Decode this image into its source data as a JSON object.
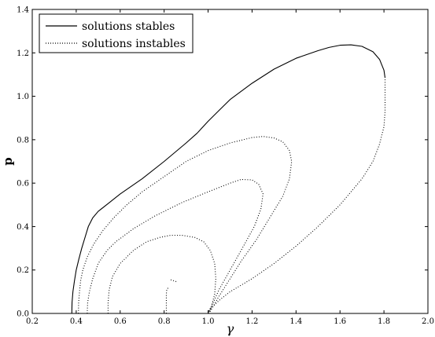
{
  "chart_data": {
    "type": "line",
    "title": "",
    "xlabel": "γ",
    "ylabel": "p",
    "xlim": [
      0.2,
      2.0
    ],
    "ylim": [
      0.0,
      1.4
    ],
    "xticks": [
      "0.2",
      "0.4",
      "0.6",
      "0.8",
      "1.0",
      "1.2",
      "1.4",
      "1.6",
      "1.8",
      "2.0"
    ],
    "yticks": [
      "0.0",
      "0.2",
      "0.4",
      "0.6",
      "0.8",
      "1.0",
      "1.2",
      "1.4"
    ],
    "grid": false,
    "legend_position": "top-left",
    "legend": [
      {
        "label": "solutions stables",
        "style": "solid"
      },
      {
        "label": "solutions instables",
        "style": "dotted"
      }
    ],
    "series": [
      {
        "style": "solid",
        "color": "#000000",
        "points": [
          [
            0.38,
            0.0
          ],
          [
            0.381,
            0.05
          ],
          [
            0.385,
            0.1
          ],
          [
            0.392,
            0.15
          ],
          [
            0.4,
            0.2
          ],
          [
            0.412,
            0.25
          ],
          [
            0.425,
            0.3
          ],
          [
            0.44,
            0.35
          ],
          [
            0.455,
            0.4
          ],
          [
            0.475,
            0.44
          ],
          [
            0.5,
            0.47
          ],
          [
            0.55,
            0.51
          ],
          [
            0.6,
            0.55
          ],
          [
            0.7,
            0.62
          ],
          [
            0.8,
            0.7
          ],
          [
            0.9,
            0.785
          ],
          [
            0.95,
            0.83
          ],
          [
            1.0,
            0.885
          ],
          [
            1.05,
            0.935
          ],
          [
            1.1,
            0.985
          ],
          [
            1.2,
            1.06
          ],
          [
            1.3,
            1.125
          ],
          [
            1.4,
            1.175
          ],
          [
            1.5,
            1.21
          ],
          [
            1.55,
            1.225
          ],
          [
            1.6,
            1.235
          ],
          [
            1.65,
            1.237
          ],
          [
            1.7,
            1.23
          ],
          [
            1.75,
            1.205
          ],
          [
            1.78,
            1.17
          ],
          [
            1.8,
            1.12
          ],
          [
            1.805,
            1.085
          ]
        ]
      },
      {
        "style": "dotted",
        "color": "#000000",
        "points": [
          [
            0.41,
            0.0
          ],
          [
            0.411,
            0.05
          ],
          [
            0.415,
            0.1
          ],
          [
            0.42,
            0.15
          ],
          [
            0.43,
            0.2
          ],
          [
            0.45,
            0.26
          ],
          [
            0.48,
            0.32
          ],
          [
            0.52,
            0.38
          ],
          [
            0.57,
            0.44
          ],
          [
            0.63,
            0.5
          ],
          [
            0.7,
            0.56
          ],
          [
            0.8,
            0.63
          ],
          [
            0.9,
            0.7
          ],
          [
            1.0,
            0.75
          ],
          [
            1.1,
            0.785
          ],
          [
            1.2,
            0.81
          ],
          [
            1.25,
            0.815
          ],
          [
            1.3,
            0.808
          ],
          [
            1.34,
            0.79
          ],
          [
            1.37,
            0.75
          ],
          [
            1.38,
            0.7
          ],
          [
            1.37,
            0.62
          ],
          [
            1.34,
            0.54
          ],
          [
            1.28,
            0.44
          ],
          [
            1.22,
            0.34
          ],
          [
            1.15,
            0.24
          ],
          [
            1.1,
            0.16
          ],
          [
            1.05,
            0.08
          ],
          [
            1.01,
            0.01
          ],
          [
            1.0,
            0.0
          ]
        ]
      },
      {
        "style": "dotted",
        "color": "#000000",
        "points": [
          [
            1.0,
            0.0
          ],
          [
            1.02,
            0.03
          ],
          [
            1.05,
            0.06
          ],
          [
            1.1,
            0.1
          ],
          [
            1.2,
            0.16
          ],
          [
            1.3,
            0.23
          ],
          [
            1.4,
            0.31
          ],
          [
            1.5,
            0.4
          ],
          [
            1.6,
            0.5
          ],
          [
            1.7,
            0.62
          ],
          [
            1.75,
            0.7
          ],
          [
            1.78,
            0.78
          ],
          [
            1.8,
            0.86
          ],
          [
            1.805,
            0.93
          ],
          [
            1.805,
            1.0
          ],
          [
            1.805,
            1.06
          ],
          [
            1.805,
            1.085
          ]
        ]
      },
      {
        "style": "dotted",
        "color": "#000000",
        "points": [
          [
            0.45,
            0.0
          ],
          [
            0.452,
            0.05
          ],
          [
            0.46,
            0.1
          ],
          [
            0.475,
            0.16
          ],
          [
            0.5,
            0.23
          ],
          [
            0.54,
            0.29
          ],
          [
            0.58,
            0.33
          ],
          [
            0.66,
            0.39
          ],
          [
            0.76,
            0.45
          ],
          [
            0.88,
            0.51
          ],
          [
            1.0,
            0.56
          ],
          [
            1.1,
            0.6
          ],
          [
            1.15,
            0.617
          ],
          [
            1.2,
            0.615
          ],
          [
            1.23,
            0.595
          ],
          [
            1.25,
            0.55
          ],
          [
            1.24,
            0.48
          ],
          [
            1.21,
            0.4
          ],
          [
            1.15,
            0.29
          ],
          [
            1.1,
            0.2
          ],
          [
            1.05,
            0.11
          ],
          [
            1.01,
            0.02
          ],
          [
            1.0,
            0.0
          ]
        ]
      },
      {
        "style": "dotted",
        "color": "#000000",
        "points": [
          [
            0.545,
            0.0
          ],
          [
            0.545,
            0.05
          ],
          [
            0.55,
            0.11
          ],
          [
            0.565,
            0.17
          ],
          [
            0.6,
            0.23
          ],
          [
            0.66,
            0.29
          ],
          [
            0.72,
            0.33
          ],
          [
            0.78,
            0.35
          ],
          [
            0.83,
            0.36
          ],
          [
            0.88,
            0.36
          ],
          [
            0.94,
            0.35
          ],
          [
            0.98,
            0.33
          ],
          [
            1.01,
            0.29
          ],
          [
            1.03,
            0.23
          ],
          [
            1.035,
            0.16
          ],
          [
            1.03,
            0.09
          ],
          [
            1.015,
            0.03
          ],
          [
            1.0,
            0.0
          ]
        ]
      },
      {
        "style": "dotted",
        "color": "#000000",
        "points": [
          [
            0.81,
            0.0
          ],
          [
            0.81,
            0.03
          ],
          [
            0.81,
            0.06
          ],
          [
            0.81,
            0.09
          ],
          [
            0.812,
            0.11
          ],
          [
            0.82,
            0.12
          ]
        ]
      },
      {
        "style": "dotted",
        "color": "#000000",
        "points": [
          [
            0.83,
            0.155
          ],
          [
            0.845,
            0.15
          ],
          [
            0.86,
            0.145
          ]
        ]
      },
      {
        "style": "dotted",
        "color": "#000000",
        "points": [
          [
            1.0,
            0.0
          ],
          [
            1.003,
            0.01
          ],
          [
            1.007,
            0.02
          ],
          [
            1.012,
            0.025
          ]
        ]
      }
    ]
  }
}
